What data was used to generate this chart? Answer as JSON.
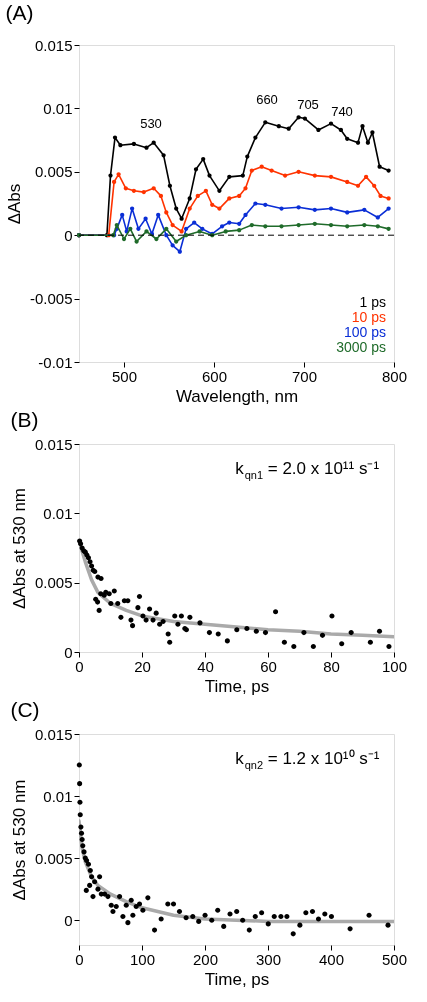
{
  "chart_data": [
    {
      "type": "line",
      "title": "(A)",
      "xlabel": "Wavelength, nm",
      "ylabel": "ΔAbs",
      "xlim": [
        450,
        800
      ],
      "xticks": [
        500,
        600,
        700,
        800
      ],
      "ylim": [
        -0.01,
        0.015
      ],
      "yticks": [
        -0.01,
        -0.005,
        0,
        0.005,
        0.01,
        0.015
      ],
      "marker": "circle",
      "legend": "bottom right",
      "ref_lines": [
        {
          "axis": "y",
          "value": 0,
          "line_style": "dashed",
          "color": "#000000"
        }
      ],
      "annotations": [
        "530",
        "660",
        "705",
        "740"
      ],
      "series": [
        {
          "name": "1 ps",
          "color": "#000000",
          "x": [
            450,
            481,
            485,
            490,
            496,
            511,
            525,
            533,
            544,
            551,
            558,
            564,
            573,
            580,
            588,
            595,
            606,
            617,
            632,
            637,
            646,
            657,
            672,
            683,
            694,
            701,
            716,
            730,
            741,
            748,
            760,
            765,
            771,
            776,
            784,
            794
          ],
          "values": [
            0,
            0,
            0.0047,
            0.0077,
            0.0071,
            0.0072,
            0.0069,
            0.0073,
            0.0063,
            0.0039,
            0.0021,
            0.0013,
            0.0029,
            0.0052,
            0.006,
            0.0047,
            0.0035,
            0.0046,
            0.0047,
            0.0062,
            0.0077,
            0.0089,
            0.0086,
            0.0084,
            0.0093,
            0.0092,
            0.0083,
            0.0088,
            0.0083,
            0.0076,
            0.0073,
            0.0086,
            0.0073,
            0.0081,
            0.0054,
            0.0051
          ]
        },
        {
          "name": "10 ps",
          "color": "#ff3300",
          "x": [
            450,
            483,
            489,
            494,
            502,
            511,
            522,
            533,
            541,
            547,
            554,
            564,
            573,
            582,
            591,
            598,
            606,
            617,
            628,
            635,
            642,
            653,
            664,
            679,
            694,
            712,
            730,
            748,
            760,
            769,
            778,
            785,
            794
          ],
          "values": [
            0,
            0,
            0.0042,
            0.0048,
            0.0037,
            0.0035,
            0.0034,
            0.0037,
            0.0031,
            0.0018,
            0.0008,
            0.0003,
            0.0021,
            0.0031,
            0.0035,
            0.0024,
            0.0021,
            0.0029,
            0.0031,
            0.0037,
            0.0051,
            0.0054,
            0.0051,
            0.0047,
            0.005,
            0.0047,
            0.0046,
            0.0042,
            0.0039,
            0.0046,
            0.0039,
            0.0031,
            0.0029
          ]
        },
        {
          "name": "100 ps",
          "color": "#0a2ed6",
          "x": [
            450,
            489,
            492,
            498,
            503,
            509,
            516,
            524,
            531,
            538,
            547,
            554,
            562,
            569,
            578,
            587,
            598,
            609,
            617,
            628,
            635,
            646,
            657,
            675,
            694,
            712,
            730,
            748,
            767,
            782,
            794
          ],
          "values": [
            0,
            0,
            0.0005,
            0.0016,
            0.0003,
            0.0021,
            0.0005,
            0.0013,
            0.0001,
            0.0016,
            0,
            -0.0008,
            -0.0013,
            0.0005,
            0.001,
            0.0005,
            0.0001,
            0.0007,
            0.001,
            0.0009,
            0.0016,
            0.0025,
            0.0024,
            0.0021,
            0.0022,
            0.002,
            0.0021,
            0.0018,
            0.002,
            0.0014,
            0.0021
          ]
        },
        {
          "name": "3000 ps",
          "color": "#1f6b2a",
          "x": [
            450,
            488,
            492,
            500,
            507,
            514,
            525,
            536,
            547,
            558,
            569,
            584,
            598,
            613,
            628,
            642,
            657,
            675,
            694,
            712,
            730,
            748,
            767,
            782,
            794
          ],
          "values": [
            0,
            0,
            0.0008,
            -0.0003,
            0.0005,
            -0.0005,
            0.0003,
            -0.0003,
            0.0005,
            -0.0005,
            0,
            0.0003,
            0,
            0.0003,
            0.0004,
            0.0008,
            0.0007,
            0.0007,
            0.0008,
            0.0009,
            0.0008,
            0.0007,
            0.0008,
            0.0007,
            0.0005
          ]
        }
      ]
    },
    {
      "type": "scatter",
      "title": "(B)",
      "xlabel": "Time, ps",
      "ylabel": "ΔAbs at 530 nm",
      "xlim": [
        0,
        100
      ],
      "xticks": [
        0,
        20,
        40,
        60,
        80,
        100
      ],
      "ylim": [
        0,
        0.015
      ],
      "yticks": [
        0,
        0.005,
        0.01,
        0.015
      ],
      "marker": "circle",
      "annotations": [
        "k$_{qn1}$ = 2.0 x 10¹¹ s⁻¹"
      ],
      "series": [
        {
          "type": "line",
          "marker": "none",
          "color": "#aaaaaa",
          "x": [
            0,
            2,
            4,
            6,
            10,
            15,
            20,
            30,
            40,
            50,
            60,
            70,
            80,
            90,
            100
          ],
          "values": [
            0.008,
            0.0065,
            0.0052,
            0.0043,
            0.0035,
            0.003,
            0.0026,
            0.0022,
            0.002,
            0.0018,
            0.0016,
            0.0015,
            0.0013,
            0.0012,
            0.0011
          ]
        },
        {
          "type": "scatter",
          "color": "#000000",
          "x": [
            0.2,
            0.5,
            1,
            1.5,
            2,
            2.5,
            3,
            3.5,
            4,
            4.5,
            5,
            6,
            7,
            5.3,
            5.9,
            6.4,
            6.9,
            8,
            8.5,
            9.6,
            10.1,
            11.2,
            12.3,
            13.3,
            14.4,
            15.5,
            16.5,
            17,
            18.7,
            19.2,
            20.3,
            21.3,
            22.4,
            23.5,
            24.5,
            25.6,
            26.7,
            28.3,
            28.8,
            30.4,
            31.4,
            32.5,
            33.6,
            34.1,
            35.2,
            38.4,
            41.4,
            44.2,
            47.1,
            50.1,
            53.3,
            56.3,
            59.2,
            62.4,
            65.2,
            68.2,
            71.4,
            74.4,
            77.3,
            80.3,
            83.4,
            86.4,
            92.5,
            95.4,
            98.4
          ],
          "values": [
            0.008,
            0.0078,
            0.0075,
            0.0073,
            0.0072,
            0.007,
            0.0068,
            0.0065,
            0.0062,
            0.0059,
            0.0058,
            0.0054,
            0.0053,
            0.0038,
            0.0036,
            0.003,
            0.0042,
            0.0041,
            0.0043,
            0.0042,
            0.0035,
            0.0044,
            0.0035,
            0.0025,
            0.0037,
            0.0037,
            0.0023,
            0.0019,
            0.0032,
            0.004,
            0.0026,
            0.0023,
            0.0031,
            0.0023,
            0.0028,
            0.002,
            0.0022,
            0.0013,
            0.0007,
            0.0026,
            0.002,
            0.0026,
            0.0017,
            0.0016,
            0.0025,
            0.0021,
            0.0014,
            0.0013,
            0.0008,
            0.0016,
            0.0017,
            0.0015,
            0.0014,
            0.0029,
            0.0007,
            0.0004,
            0.0014,
            0.0004,
            0.0012,
            0.0026,
            0.0006,
            0.0014,
            0.0007,
            0.0015,
            0.0004
          ]
        }
      ]
    },
    {
      "type": "scatter",
      "title": "(C)",
      "xlabel": "Time, ps",
      "ylabel": "ΔAbs at 530 nm",
      "xlim": [
        0,
        500
      ],
      "xticks": [
        0,
        100,
        200,
        300,
        400,
        500
      ],
      "ylim": [
        -0.002,
        0.015
      ],
      "yticks": [
        0,
        0.005,
        0.01,
        0.015
      ],
      "marker": "circle",
      "annotations": [
        "k$_{qn2}$ = 1.2 x 10¹⁰ s⁻¹"
      ],
      "series": [
        {
          "type": "line",
          "marker": "none",
          "color": "#aaaaaa",
          "x": [
            0,
            5,
            10,
            20,
            30,
            50,
            75,
            100,
            150,
            200,
            250,
            300,
            400,
            500
          ],
          "values": [
            0.008,
            0.0058,
            0.0047,
            0.0035,
            0.0028,
            0.0021,
            0.0015,
            0.001,
            0.0004,
            0.0001,
            0,
            -0.0001,
            -0.0001,
            -0.0001
          ]
        },
        {
          "type": "scatter",
          "color": "#000000",
          "x": [
            0.5,
            1,
            1.5,
            2,
            3,
            4,
            5,
            6,
            8,
            10,
            12,
            15,
            18,
            20,
            11.6,
            16.9,
            22.2,
            24.8,
            30.1,
            32.7,
            35.4,
            40.7,
            45.9,
            51.2,
            53.9,
            59.1,
            64.4,
            69.7,
            75,
            77.6,
            82.9,
            85.5,
            90.8,
            96.1,
            101.4,
            109.3,
            119.9,
            130.4,
            141,
            150,
            159.5,
            170,
            180.6,
            190,
            200.1,
            210.7,
            220.2,
            229.7,
            239.7,
            250.3,
            259.8,
            270.3,
            279.8,
            289.9,
            300.4,
            309.9,
            320.5,
            330,
            340,
            350.6,
            360.1,
            370.6,
            380.1,
            390.2,
            400.7,
            430.3,
            460.4,
            490.5
          ],
          "values": [
            0.0125,
            0.011,
            0.0095,
            0.0085,
            0.0075,
            0.007,
            0.0065,
            0.006,
            0.0055,
            0.005,
            0.0048,
            0.0045,
            0.004,
            0.0035,
            0.0024,
            0.0028,
            0.0019,
            0.0031,
            0.0025,
            0.0035,
            0.0021,
            0.0021,
            0.0019,
            0.0012,
            0.0007,
            0.0011,
            0.0019,
            0.0003,
            0.0012,
            -0.0002,
            0.0016,
            0.0004,
            0.0011,
            0.0013,
            0.0008,
            0.0018,
            -0.0008,
            0.0001,
            0.0013,
            0.0013,
            0.0007,
            0.0002,
            0.0003,
            -0.0001,
            0.0004,
            0,
            0.0008,
            -0.0005,
            0.0005,
            0.0007,
            0,
            -0.0008,
            0.0003,
            0.0006,
            -0.0003,
            0.0003,
            0.0003,
            0.0003,
            -0.0011,
            -0.0004,
            0.0006,
            0.0007,
            0.0001,
            0.0005,
            0.0003,
            -0.0007,
            0.0004,
            -0.0004
          ]
        }
      ]
    }
  ]
}
